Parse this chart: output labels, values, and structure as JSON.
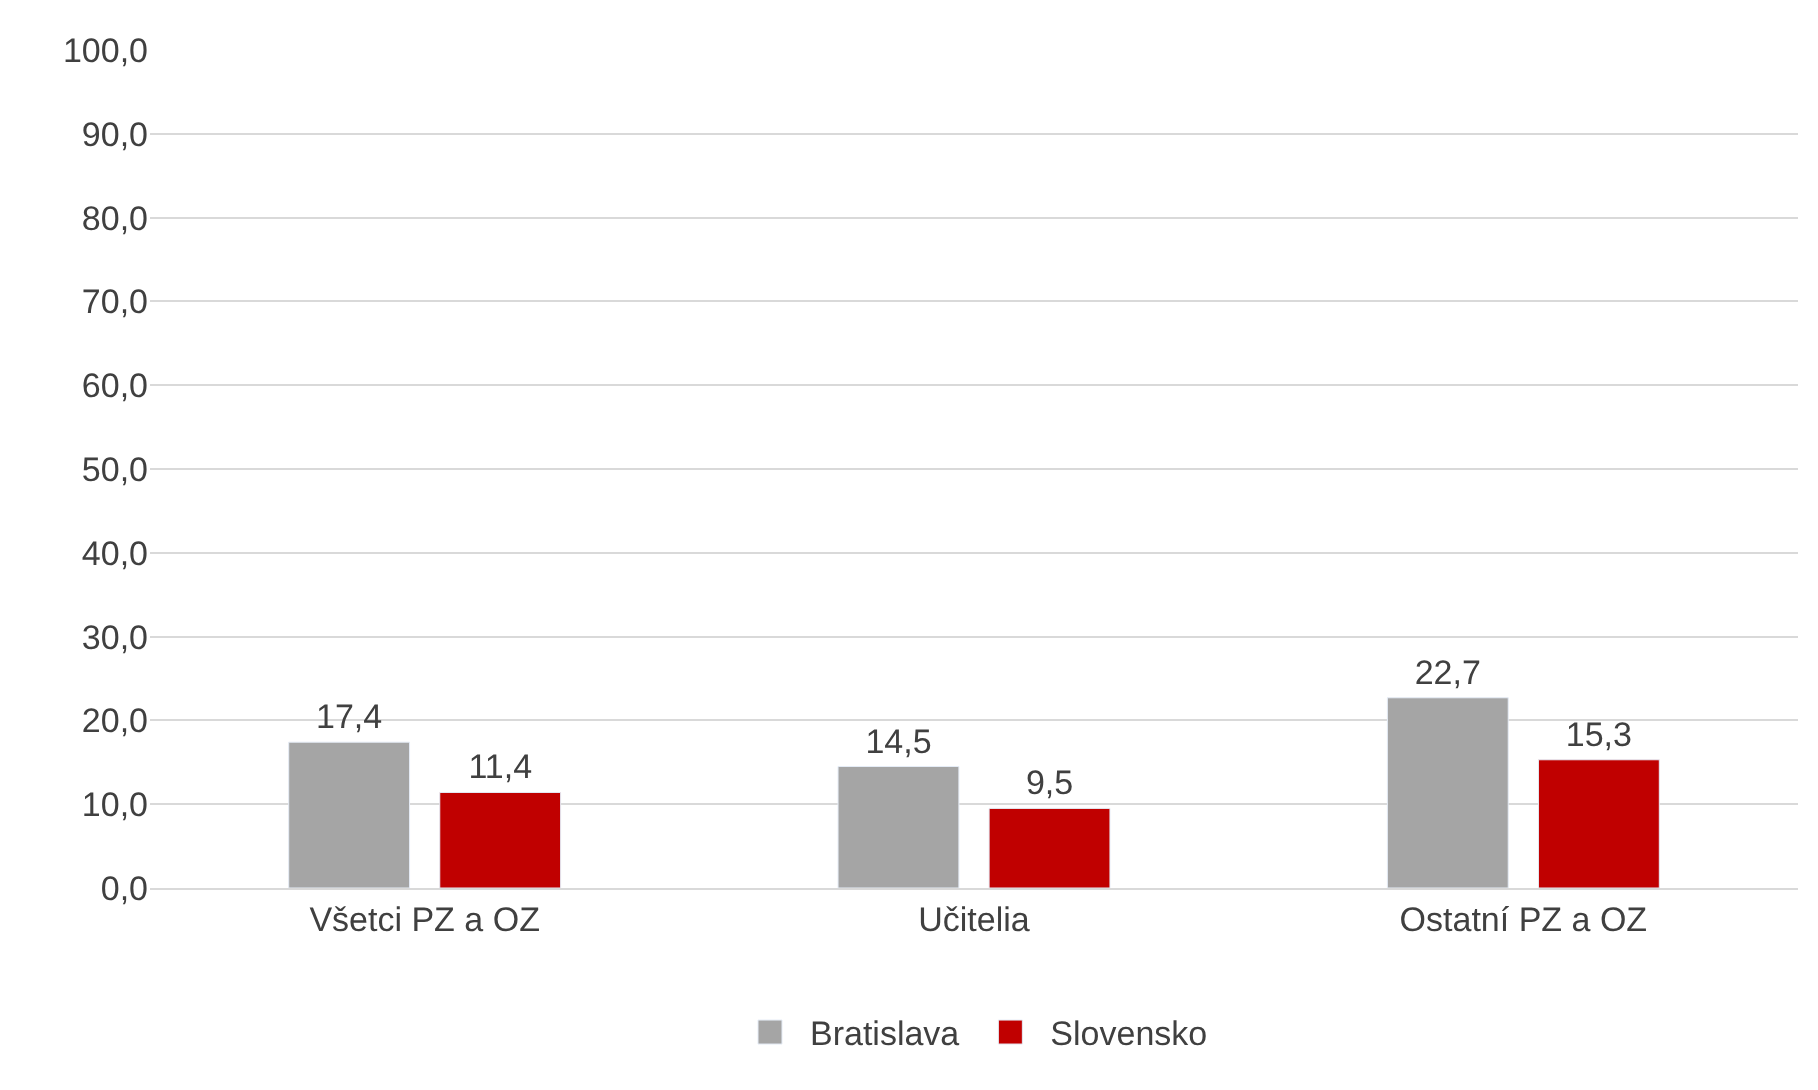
{
  "chart_data": {
    "type": "bar",
    "categories": [
      "Všetci PZ a OZ",
      "Učitelia",
      "Ostatní PZ a OZ"
    ],
    "series": [
      {
        "name": "Bratislava",
        "color": "#a5a5a5",
        "values": [
          17.4,
          14.5,
          22.7
        ],
        "value_labels": [
          "17,4",
          "14,5",
          "22,7"
        ]
      },
      {
        "name": "Slovensko",
        "color": "#c00000",
        "values": [
          11.4,
          9.5,
          15.3
        ],
        "value_labels": [
          "11,4",
          "9,5",
          "15,3"
        ]
      }
    ],
    "ylim": [
      0,
      100
    ],
    "yticks": [
      {
        "value": 0,
        "label": "0,0"
      },
      {
        "value": 10,
        "label": "10,0"
      },
      {
        "value": 20,
        "label": "20,0"
      },
      {
        "value": 30,
        "label": "30,0"
      },
      {
        "value": 40,
        "label": "40,0"
      },
      {
        "value": 50,
        "label": "50,0"
      },
      {
        "value": 60,
        "label": "60,0"
      },
      {
        "value": 70,
        "label": "70,0"
      },
      {
        "value": 80,
        "label": "80,0"
      },
      {
        "value": 90,
        "label": "90,0"
      },
      {
        "value": 100,
        "label": "100,0"
      }
    ],
    "grid": "y",
    "legend": "bottom"
  }
}
